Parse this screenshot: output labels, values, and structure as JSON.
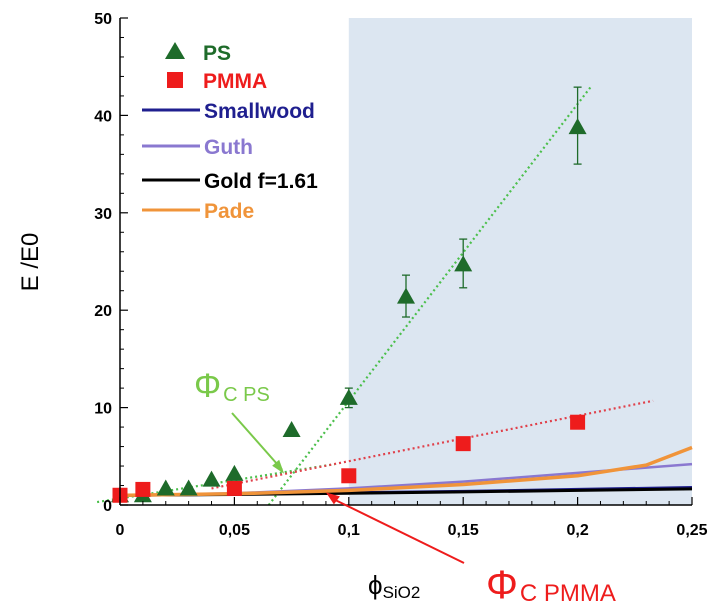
{
  "chart_data": {
    "type": "scatter",
    "title": "",
    "xlabel": "ϕSiO2",
    "ylabel": "E /E0",
    "xlim": [
      0,
      0.25
    ],
    "ylim": [
      0,
      50
    ],
    "xticks": [
      "0",
      "0,05",
      "0,1",
      "0,15",
      "0,2",
      "0,25"
    ],
    "yticks": [
      "0",
      "10",
      "20",
      "30",
      "40",
      "50"
    ],
    "shaded_region": {
      "x_from": 0.1,
      "x_to": 0.25,
      "color": "#dce6f1"
    },
    "series": [
      {
        "name": "PS",
        "marker": "triangle",
        "color": "#1e6b2a",
        "points": [
          {
            "x": 0,
            "y": 1.0
          },
          {
            "x": 0.01,
            "y": 1.0
          },
          {
            "x": 0.02,
            "y": 1.7
          },
          {
            "x": 0.03,
            "y": 1.7
          },
          {
            "x": 0.04,
            "y": 2.6
          },
          {
            "x": 0.05,
            "y": 3.2
          },
          {
            "x": 0.075,
            "y": 7.7
          },
          {
            "x": 0.1,
            "y": 11.0
          },
          {
            "x": 0.125,
            "y": 21.4
          },
          {
            "x": 0.15,
            "y": 24.7
          },
          {
            "x": 0.2,
            "y": 38.8
          }
        ],
        "errors": [
          {
            "x": 0.1,
            "low": 10.0,
            "high": 12.0
          },
          {
            "x": 0.125,
            "low": 19.3,
            "high": 23.6
          },
          {
            "x": 0.15,
            "low": 22.3,
            "high": 27.3
          },
          {
            "x": 0.2,
            "low": 35.0,
            "high": 42.9
          }
        ]
      },
      {
        "name": "PMMA",
        "marker": "square",
        "color": "#ee1c1c",
        "points": [
          {
            "x": 0,
            "y": 1.0
          },
          {
            "x": 0.01,
            "y": 1.6
          },
          {
            "x": 0.05,
            "y": 1.7
          },
          {
            "x": 0.1,
            "y": 3.0
          },
          {
            "x": 0.15,
            "y": 6.3
          },
          {
            "x": 0.2,
            "y": 8.5
          }
        ]
      },
      {
        "name": "Smallwood",
        "type": "line",
        "color": "#1f1f8f",
        "points": [
          {
            "x": 0,
            "y": 1.0
          },
          {
            "x": 0.05,
            "y": 1.1
          },
          {
            "x": 0.1,
            "y": 1.25
          },
          {
            "x": 0.15,
            "y": 1.4
          },
          {
            "x": 0.2,
            "y": 1.6
          },
          {
            "x": 0.25,
            "y": 1.8
          }
        ]
      },
      {
        "name": "Guth",
        "type": "line",
        "color": "#8a78d0",
        "points": [
          {
            "x": 0,
            "y": 1.0
          },
          {
            "x": 0.05,
            "y": 1.2
          },
          {
            "x": 0.1,
            "y": 1.7
          },
          {
            "x": 0.15,
            "y": 2.4
          },
          {
            "x": 0.2,
            "y": 3.3
          },
          {
            "x": 0.25,
            "y": 4.2
          }
        ]
      },
      {
        "name": "Gold f=1.61",
        "type": "line",
        "color": "#000000",
        "points": [
          {
            "x": 0,
            "y": 1.0
          },
          {
            "x": 0.05,
            "y": 1.08
          },
          {
            "x": 0.1,
            "y": 1.2
          },
          {
            "x": 0.15,
            "y": 1.35
          },
          {
            "x": 0.2,
            "y": 1.5
          },
          {
            "x": 0.25,
            "y": 1.65
          }
        ]
      },
      {
        "name": "Pade",
        "type": "line",
        "color": "#f0943a",
        "points": [
          {
            "x": 0,
            "y": 1.0
          },
          {
            "x": 0.05,
            "y": 1.15
          },
          {
            "x": 0.1,
            "y": 1.5
          },
          {
            "x": 0.15,
            "y": 2.1
          },
          {
            "x": 0.2,
            "y": 3.0
          },
          {
            "x": 0.23,
            "y": 4.1
          },
          {
            "x": 0.25,
            "y": 5.9
          }
        ]
      }
    ],
    "fit_lines": [
      {
        "name": "PS steep fit",
        "color": "#4bbf4b",
        "points": [
          {
            "x": 0.065,
            "y": 0
          },
          {
            "x": 0.206,
            "y": 43
          }
        ]
      },
      {
        "name": "PS dilute fit",
        "color": "#4bbf4b",
        "points": [
          {
            "x": -0.01,
            "y": 0.3
          },
          {
            "x": 0.094,
            "y": 4.2
          }
        ]
      },
      {
        "name": "PMMA fit",
        "color": "#e0404a",
        "points": [
          {
            "x": 0.04,
            "y": 1.7
          },
          {
            "x": 0.233,
            "y": 10.7
          }
        ]
      }
    ],
    "annotations": [
      {
        "symbol": "Φ",
        "sub": "C PS",
        "color": "#7ac94a",
        "points_to": {
          "x": 0.07,
          "y": 2.8
        }
      },
      {
        "symbol": "Φ",
        "sub": "C PMMA",
        "color": "#ee1c1c",
        "points_to": {
          "x": 0.09,
          "y": 1.3
        }
      }
    ],
    "legend": "top-left"
  }
}
